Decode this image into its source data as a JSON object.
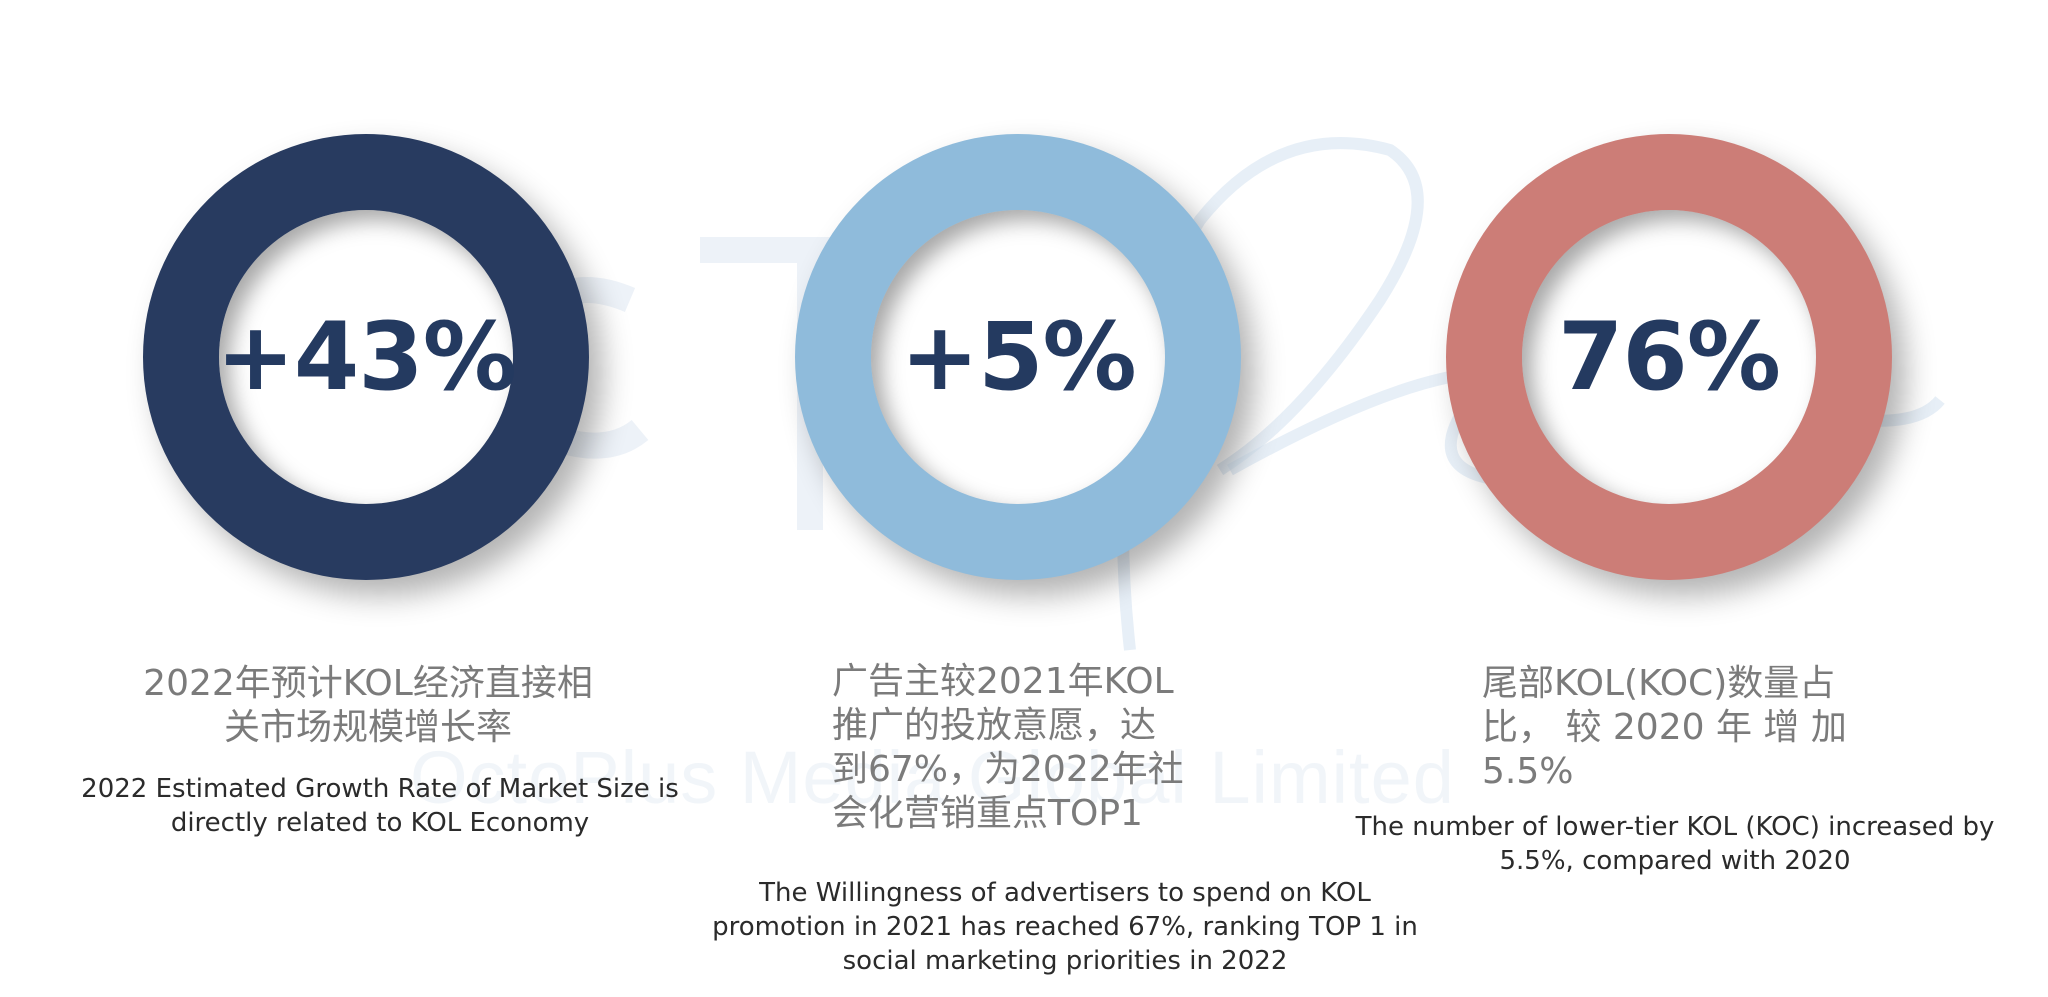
{
  "watermark": {
    "text": "OctoPlus Media Global Limited"
  },
  "stats": [
    {
      "value": "+43%",
      "ring_color": "#283b60",
      "label_zh": "2022年预计KOL经济直接相\n关市场规模增长率",
      "label_en": "2022 Estimated Growth Rate of Market Size is\ndirectly related to KOL Economy"
    },
    {
      "value": "+5%",
      "ring_color": "#8fbbdb",
      "label_zh": "广告主较2021年KOL\n推广的投放意愿，达\n到67%，为2022年社\n会化营销重点TOP1",
      "label_en": "The Willingness of advertisers to spend on KOL\npromotion in 2021 has reached 67%, ranking TOP 1 in\nsocial marketing priorities in 2022"
    },
    {
      "value": "76%",
      "ring_color": "#cc7d77",
      "label_zh": "尾部KOL(KOC)数量占\n比， 较 2020 年 增 加\n5.5%",
      "label_en": "The number of lower-tier KOL (KOC) increased by\n5.5%, compared with 2020"
    }
  ]
}
